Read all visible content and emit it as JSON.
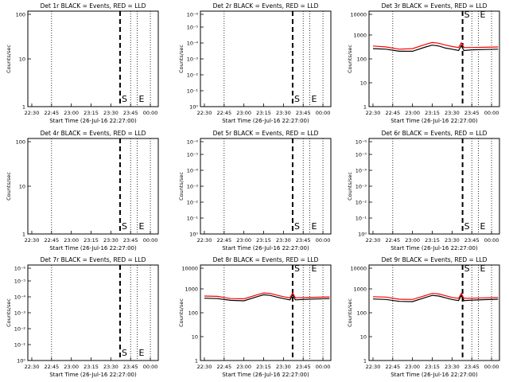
{
  "chart_data": [
    {
      "type": "line",
      "title": "Det 1r BLACK = Events, RED = LLD",
      "ylabel": "Counts/sec",
      "xlabel": "Start Time (26-Jul-16 22:27:00)",
      "x_tick_labels": [
        "22:30",
        "22:45",
        "23:00",
        "23:15",
        "23:30",
        "23:45",
        "00:00"
      ],
      "y_tick_labels": [
        "1",
        "10",
        "100"
      ],
      "ylim": [
        1,
        100
      ],
      "yscale": "log",
      "markers": [
        {
          "label": "S",
          "time": "23:37"
        },
        {
          "label": "E",
          "time": "23:50"
        }
      ],
      "series": []
    },
    {
      "type": "line",
      "title": "Det 2r BLACK = Events, RED = LLD",
      "ylabel": "Counts/sec",
      "xlabel": "Start Time (26-Jul-16 22:27:00)",
      "x_tick_labels": [
        "22:30",
        "22:45",
        "23:00",
        "23:15",
        "23:30",
        "23:45",
        "00:00"
      ],
      "y_tick_labels": [
        "10⁰",
        "10⁻¹",
        "10⁻²",
        "10⁻³",
        "10⁻⁴",
        "10⁻⁵",
        "10⁻⁶"
      ],
      "ylim": [
        1,
        1e-06
      ],
      "yscale": "log",
      "markers": [
        {
          "label": "S",
          "time": "23:37"
        },
        {
          "label": "E",
          "time": "23:50"
        }
      ],
      "series": []
    },
    {
      "type": "line",
      "title": "Det 3r BLACK = Events, RED = LLD",
      "ylabel": "Counts/sec",
      "xlabel": "Start Time (26-Jul-16 22:27:00)",
      "x_tick_labels": [
        "22:30",
        "22:45",
        "23:00",
        "23:15",
        "23:30",
        "23:45",
        "00:00"
      ],
      "y_tick_labels": [
        "1",
        "10",
        "100",
        "1000",
        "10000"
      ],
      "ylim": [
        1,
        10000
      ],
      "yscale": "log",
      "markers": [
        {
          "label": "S",
          "time": "23:38"
        },
        {
          "label": "E",
          "time": "23:50"
        }
      ],
      "series": [
        {
          "label_color": "BLACK",
          "color": "#000000",
          "x": [
            "22:30",
            "22:40",
            "22:50",
            "23:00",
            "23:10",
            "23:15",
            "23:20",
            "23:25",
            "23:30",
            "23:35",
            "23:37",
            "23:39",
            "23:45",
            "23:55",
            "00:05"
          ],
          "values": [
            190,
            180,
            150,
            150,
            220,
            260,
            240,
            200,
            180,
            160,
            250,
            160,
            170,
            175,
            180
          ]
        },
        {
          "label_color": "RED",
          "color": "#ff0000",
          "x": [
            "22:30",
            "22:40",
            "22:50",
            "23:00",
            "23:10",
            "23:15",
            "23:20",
            "23:25",
            "23:30",
            "23:35",
            "23:37",
            "23:39",
            "23:45",
            "23:55",
            "00:05"
          ],
          "values": [
            240,
            220,
            180,
            190,
            280,
            330,
            310,
            260,
            230,
            210,
            320,
            210,
            210,
            215,
            220
          ]
        }
      ]
    },
    {
      "type": "line",
      "title": "Det 4r BLACK = Events, RED = LLD",
      "ylabel": "Counts/sec",
      "xlabel": "Start Time (26-Jul-16 22:27:00)",
      "x_tick_labels": [
        "22:30",
        "22:45",
        "23:00",
        "23:15",
        "23:30",
        "23:45",
        "00:00"
      ],
      "y_tick_labels": [
        "1",
        "10",
        "100"
      ],
      "ylim": [
        1,
        100
      ],
      "yscale": "log",
      "markers": [
        {
          "label": "S",
          "time": "23:37"
        },
        {
          "label": "E",
          "time": "23:50"
        }
      ],
      "series": []
    },
    {
      "type": "line",
      "title": "Det 5r BLACK = Events, RED = LLD",
      "ylabel": "Counts/sec",
      "xlabel": "Start Time (26-Jul-16 22:27:00)",
      "x_tick_labels": [
        "22:30",
        "22:45",
        "23:00",
        "23:15",
        "23:30",
        "23:45",
        "00:00"
      ],
      "y_tick_labels": [
        "10⁰",
        "10⁻¹",
        "10⁻²",
        "10⁻³",
        "10⁻⁴",
        "10⁻⁵",
        "10⁻⁶"
      ],
      "ylim": [
        1,
        1e-06
      ],
      "yscale": "log",
      "markers": [
        {
          "label": "S",
          "time": "23:37"
        },
        {
          "label": "E",
          "time": "23:50"
        }
      ],
      "series": []
    },
    {
      "type": "line",
      "title": "Det 6r BLACK = Events, RED = LLD",
      "ylabel": "Counts/sec",
      "xlabel": "Start Time (26-Jul-16 22:27:00)",
      "x_tick_labels": [
        "22:30",
        "22:45",
        "23:00",
        "23:15",
        "23:30",
        "23:45",
        "00:00"
      ],
      "y_tick_labels": [
        "10⁰",
        "10⁻¹",
        "10⁻²",
        "10⁻³",
        "10⁻⁴",
        "10⁻⁵",
        "10⁻⁶"
      ],
      "ylim": [
        1,
        1e-06
      ],
      "yscale": "log",
      "markers": [
        {
          "label": "S",
          "time": "23:38"
        },
        {
          "label": "E",
          "time": "23:50"
        }
      ],
      "series": []
    },
    {
      "type": "line",
      "title": "Det 7r BLACK = Events, RED = LLD",
      "ylabel": "Counts/sec",
      "xlabel": "Start Time (26-Jul-16 22:27:00)",
      "x_tick_labels": [
        "22:30",
        "22:45",
        "23:00",
        "23:15",
        "23:30",
        "23:45",
        "00:00"
      ],
      "y_tick_labels": [
        "10⁰",
        "10⁻¹",
        "10⁻²",
        "10⁻³",
        "10⁻⁴",
        "10⁻⁵",
        "10⁻⁶"
      ],
      "ylim": [
        1,
        1e-06
      ],
      "yscale": "log",
      "markers": [
        {
          "label": "S",
          "time": "23:37"
        },
        {
          "label": "E",
          "time": "23:50"
        }
      ],
      "series": []
    },
    {
      "type": "line",
      "title": "Det 8r BLACK = Events, RED = LLD",
      "ylabel": "Counts/sec",
      "xlabel": "Start Time (26-Jul-16 22:27:00)",
      "x_tick_labels": [
        "22:30",
        "22:45",
        "23:00",
        "23:15",
        "23:30",
        "23:45",
        "00:00"
      ],
      "y_tick_labels": [
        "1",
        "10",
        "100",
        "1000",
        "10000"
      ],
      "ylim": [
        1,
        10000
      ],
      "yscale": "log",
      "markers": [
        {
          "label": "S",
          "time": "23:37"
        },
        {
          "label": "E",
          "time": "23:50"
        }
      ],
      "series": [
        {
          "label_color": "BLACK",
          "color": "#000000",
          "x": [
            "22:30",
            "22:40",
            "22:50",
            "23:00",
            "23:10",
            "23:15",
            "23:20",
            "23:25",
            "23:30",
            "23:35",
            "23:37",
            "23:39",
            "23:45",
            "23:55",
            "00:05"
          ],
          "values": [
            280,
            270,
            230,
            220,
            320,
            380,
            360,
            310,
            270,
            240,
            380,
            240,
            250,
            260,
            270
          ]
        },
        {
          "label_color": "RED",
          "color": "#ff0000",
          "x": [
            "22:30",
            "22:40",
            "22:50",
            "23:00",
            "23:10",
            "23:15",
            "23:20",
            "23:25",
            "23:30",
            "23:35",
            "23:37",
            "23:39",
            "23:45",
            "23:55",
            "00:05"
          ],
          "values": [
            340,
            330,
            270,
            265,
            380,
            450,
            430,
            370,
            320,
            290,
            450,
            290,
            295,
            305,
            315
          ]
        }
      ]
    },
    {
      "type": "line",
      "title": "Det 9r BLACK = Events, RED = LLD",
      "ylabel": "Counts/sec",
      "xlabel": "Start Time (26-Jul-16 22:27:00)",
      "x_tick_labels": [
        "22:30",
        "22:45",
        "23:00",
        "23:15",
        "23:30",
        "23:45",
        "00:00"
      ],
      "y_tick_labels": [
        "1",
        "10",
        "100",
        "1000",
        "10000"
      ],
      "ylim": [
        1,
        10000
      ],
      "yscale": "log",
      "markers": [
        {
          "label": "S",
          "time": "23:38"
        },
        {
          "label": "E",
          "time": "23:50"
        }
      ],
      "series": [
        {
          "label_color": "BLACK",
          "color": "#000000",
          "x": [
            "22:30",
            "22:40",
            "22:50",
            "23:00",
            "23:10",
            "23:15",
            "23:20",
            "23:25",
            "23:30",
            "23:35",
            "23:37",
            "23:39",
            "23:45",
            "23:55",
            "00:05"
          ],
          "values": [
            260,
            250,
            210,
            205,
            300,
            360,
            340,
            290,
            250,
            225,
            360,
            225,
            235,
            245,
            255
          ]
        },
        {
          "label_color": "RED",
          "color": "#ff0000",
          "x": [
            "22:30",
            "22:40",
            "22:50",
            "23:00",
            "23:10",
            "23:15",
            "23:20",
            "23:25",
            "23:30",
            "23:35",
            "23:37",
            "23:39",
            "23:45",
            "23:55",
            "00:05"
          ],
          "values": [
            320,
            310,
            255,
            250,
            360,
            430,
            410,
            350,
            300,
            275,
            430,
            275,
            280,
            290,
            300
          ]
        }
      ]
    }
  ]
}
